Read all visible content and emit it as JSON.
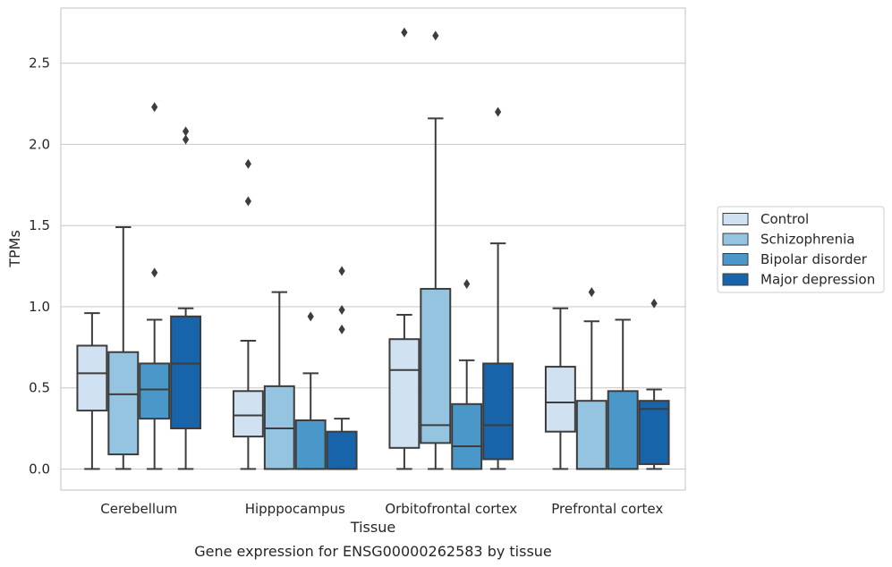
{
  "chart_data": {
    "type": "box",
    "title": "",
    "caption": "Gene expression for ENSG00000262583 by tissue",
    "xlabel": "Tissue",
    "ylabel": "TPMs",
    "ylim": [
      -0.13,
      2.84
    ],
    "yticks": [
      "0.0",
      "0.5",
      "1.0",
      "1.5",
      "2.0",
      "2.5"
    ],
    "ytick_values": [
      0.0,
      0.5,
      1.0,
      1.5,
      2.0,
      2.5
    ],
    "grid": "horizontal",
    "legend_position": "right",
    "categories": [
      "Cerebellum",
      "Hipppocampus",
      "Orbitofrontal cortex",
      "Prefrontal cortex"
    ],
    "series": [
      {
        "name": "Control",
        "color": "#d0e1f2",
        "boxes": [
          {
            "q1": 0.36,
            "median": 0.59,
            "q3": 0.76,
            "whisker_low": 0.0,
            "whisker_high": 0.96,
            "outliers": []
          },
          {
            "q1": 0.2,
            "median": 0.33,
            "q3": 0.48,
            "whisker_low": 0.0,
            "whisker_high": 0.79,
            "outliers": [
              1.65,
              1.88
            ]
          },
          {
            "q1": 0.13,
            "median": 0.61,
            "q3": 0.8,
            "whisker_low": 0.0,
            "whisker_high": 0.95,
            "outliers": [
              2.69
            ]
          },
          {
            "q1": 0.23,
            "median": 0.41,
            "q3": 0.63,
            "whisker_low": 0.0,
            "whisker_high": 0.99,
            "outliers": []
          }
        ]
      },
      {
        "name": "Schizophrenia",
        "color": "#94c4df",
        "boxes": [
          {
            "q1": 0.09,
            "median": 0.46,
            "q3": 0.72,
            "whisker_low": 0.0,
            "whisker_high": 1.49,
            "outliers": []
          },
          {
            "q1": 0.0,
            "median": 0.25,
            "q3": 0.51,
            "whisker_low": 0.0,
            "whisker_high": 1.09,
            "outliers": []
          },
          {
            "q1": 0.16,
            "median": 0.27,
            "q3": 1.11,
            "whisker_low": 0.0,
            "whisker_high": 2.16,
            "outliers": [
              2.67
            ]
          },
          {
            "q1": 0.0,
            "median": 0.0,
            "q3": 0.42,
            "whisker_low": 0.0,
            "whisker_high": 0.91,
            "outliers": [
              1.09
            ]
          }
        ]
      },
      {
        "name": "Bipolar disorder",
        "color": "#4a98c9",
        "boxes": [
          {
            "q1": 0.31,
            "median": 0.49,
            "q3": 0.65,
            "whisker_low": 0.0,
            "whisker_high": 0.92,
            "outliers": [
              1.21,
              2.23
            ]
          },
          {
            "q1": 0.0,
            "median": 0.0,
            "q3": 0.3,
            "whisker_low": 0.0,
            "whisker_high": 0.59,
            "outliers": [
              0.94
            ]
          },
          {
            "q1": 0.0,
            "median": 0.14,
            "q3": 0.4,
            "whisker_low": 0.0,
            "whisker_high": 0.67,
            "outliers": [
              1.14
            ]
          },
          {
            "q1": 0.0,
            "median": 0.0,
            "q3": 0.48,
            "whisker_low": 0.0,
            "whisker_high": 0.92,
            "outliers": []
          }
        ]
      },
      {
        "name": "Major depression",
        "color": "#1764ab",
        "boxes": [
          {
            "q1": 0.25,
            "median": 0.65,
            "q3": 0.94,
            "whisker_low": 0.0,
            "whisker_high": 0.99,
            "outliers": [
              2.03,
              2.08
            ]
          },
          {
            "q1": 0.0,
            "median": 0.0,
            "q3": 0.23,
            "whisker_low": 0.0,
            "whisker_high": 0.31,
            "outliers": [
              0.86,
              0.98,
              1.22
            ]
          },
          {
            "q1": 0.06,
            "median": 0.27,
            "q3": 0.65,
            "whisker_low": 0.0,
            "whisker_high": 1.39,
            "outliers": [
              2.2
            ]
          },
          {
            "q1": 0.03,
            "median": 0.37,
            "q3": 0.42,
            "whisker_low": 0.0,
            "whisker_high": 0.49,
            "outliers": [
              1.02
            ]
          }
        ]
      }
    ]
  }
}
